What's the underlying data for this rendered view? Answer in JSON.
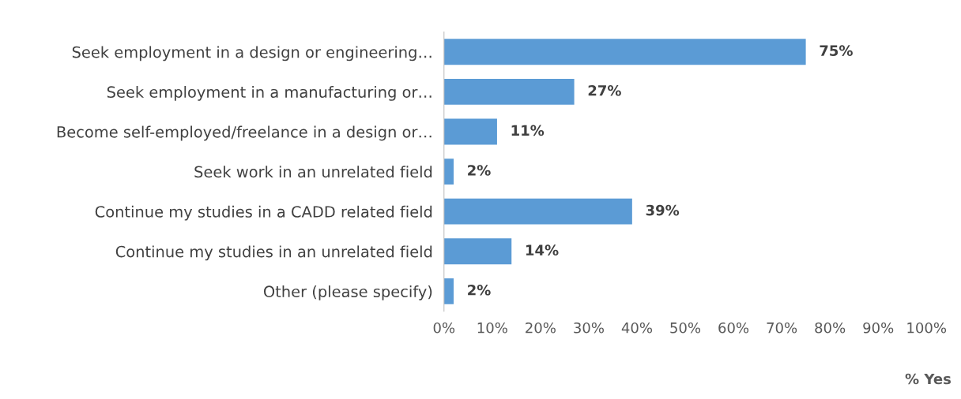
{
  "chart_data": {
    "type": "bar",
    "orientation": "horizontal",
    "xlabel": "% Yes",
    "categories": [
      "Seek employment in a design or engineering…",
      "Seek employment in a manufacturing or…",
      "Become self-employed/freelance in a design or…",
      "Seek work in an unrelated field",
      "Continue my studies in a CADD related field",
      "Continue my studies in an unrelated field",
      "Other (please specify)"
    ],
    "values": [
      75,
      27,
      11,
      2,
      39,
      14,
      2
    ],
    "value_labels": [
      "75%",
      "27%",
      "11%",
      "2%",
      "39%",
      "14%",
      "2%"
    ],
    "color": "#5b9bd5",
    "xlim": [
      0,
      100
    ],
    "xticks": [
      {
        "value": 0,
        "label": "0%"
      },
      {
        "value": 10,
        "label": "10%"
      },
      {
        "value": 20,
        "label": "20%"
      },
      {
        "value": 30,
        "label": "30%"
      },
      {
        "value": 40,
        "label": "40%"
      },
      {
        "value": 50,
        "label": "50%"
      },
      {
        "value": 60,
        "label": "60%"
      },
      {
        "value": 70,
        "label": "70%"
      },
      {
        "value": 80,
        "label": "80%"
      },
      {
        "value": 90,
        "label": "90%"
      },
      {
        "value": 100,
        "label": "100%"
      }
    ],
    "grid": false,
    "legend": false
  }
}
